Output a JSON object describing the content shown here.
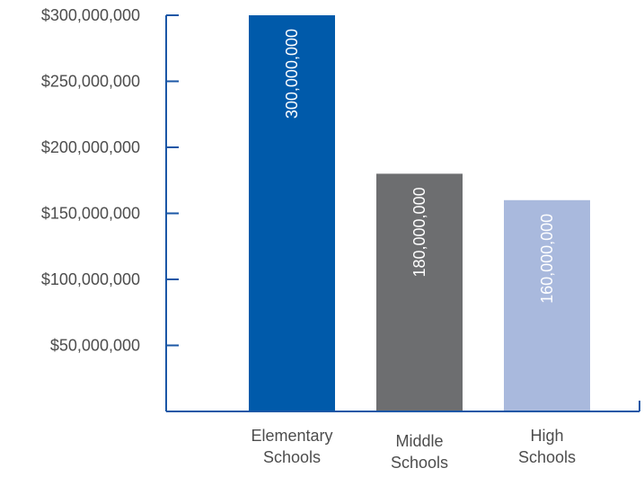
{
  "chart_data": {
    "type": "bar",
    "categories": [
      "Elementary Schools",
      "Middle Schools",
      "High Schools"
    ],
    "category_lines": [
      [
        "Elementary",
        "Schools"
      ],
      [
        "Middle",
        "Schools"
      ],
      [
        "High",
        "Schools"
      ]
    ],
    "values": [
      300000000,
      180000000,
      160000000
    ],
    "data_labels": [
      "300,000,000",
      "180,000,000",
      "160,000,000"
    ],
    "bar_colors": [
      "#005aaa",
      "#6d6e70",
      "#a9b9dd"
    ],
    "axis_color": "#1b57a6",
    "ylim": [
      0,
      300000000
    ],
    "yticks": [
      50000000,
      100000000,
      150000000,
      200000000,
      250000000,
      300000000
    ],
    "ytick_labels": [
      "$50,000,000",
      "$100,000,000",
      "$150,000,000",
      "$200,000,000",
      "$250,000,000",
      "$300,000,000"
    ],
    "grid": false,
    "legend": "none",
    "title": "",
    "xlabel": "",
    "ylabel": ""
  }
}
